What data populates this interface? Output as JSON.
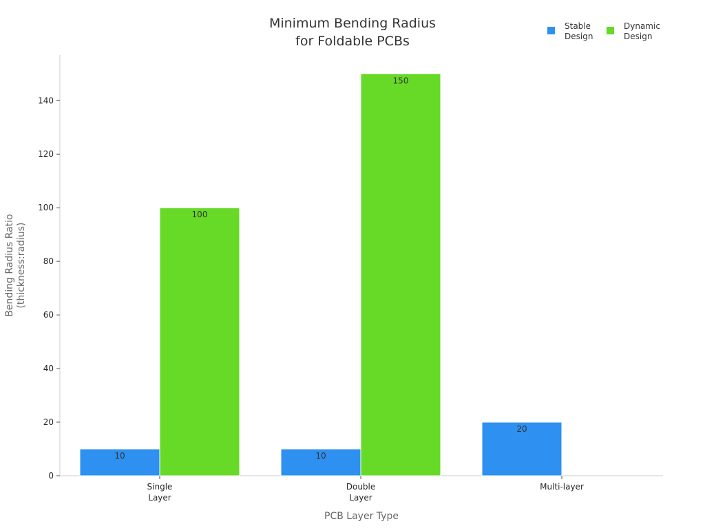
{
  "chart_data": {
    "type": "bar",
    "title": [
      "Minimum Bending Radius",
      "for Foldable PCBs"
    ],
    "xlabel": "PCB Layer Type",
    "ylabel": [
      "Bending Radius Ratio",
      "(thickness:radius)"
    ],
    "categories": [
      [
        "Single",
        "Layer"
      ],
      [
        "Double",
        "Layer"
      ],
      [
        "Multi-layer"
      ]
    ],
    "series": [
      {
        "name": [
          "Stable",
          "Design"
        ],
        "color": "#2e90f0",
        "values": [
          10,
          10,
          20
        ]
      },
      {
        "name": [
          "Dynamic",
          "Design"
        ],
        "color": "#66da26",
        "values": [
          100,
          150,
          null
        ]
      }
    ],
    "ylim": [
      0,
      157
    ],
    "yticks": [
      0,
      20,
      40,
      60,
      80,
      100,
      120,
      140
    ],
    "grid": false,
    "legend_position": "top-right"
  }
}
